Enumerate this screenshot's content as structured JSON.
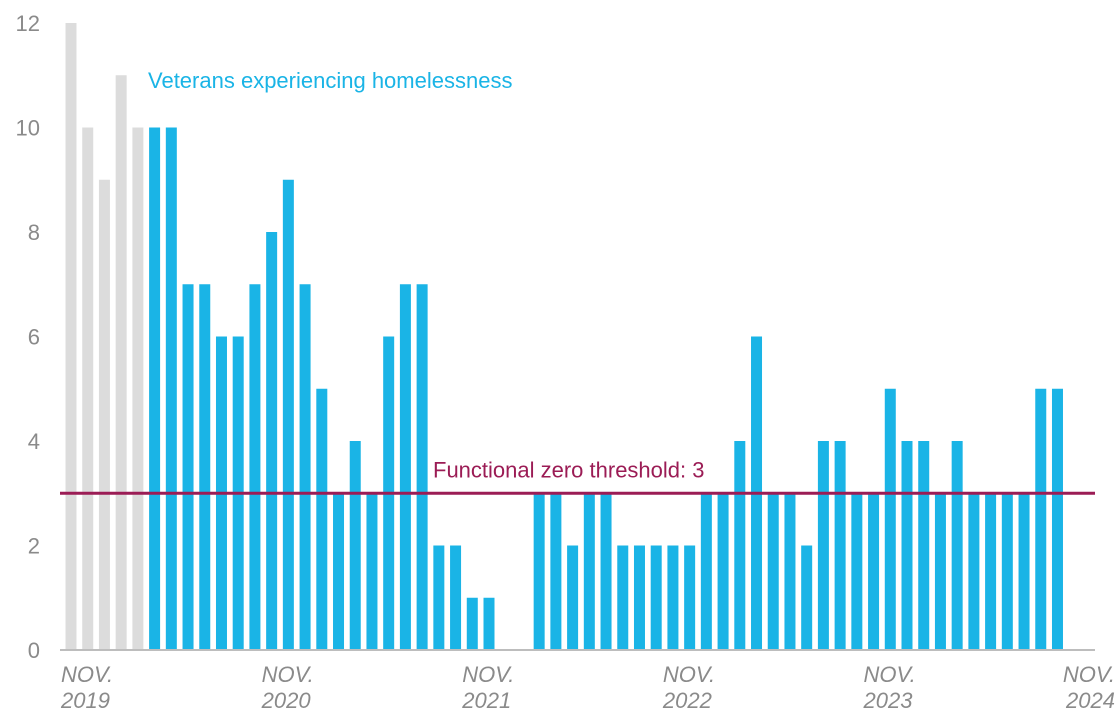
{
  "chart_data": {
    "type": "bar",
    "series_label": "Veterans experiencing homelessness",
    "label_color": "#1ab4e6",
    "categories": [
      "NOV. 2019",
      null,
      null,
      null,
      null,
      null,
      null,
      null,
      null,
      null,
      null,
      null,
      "NOV. 2020",
      null,
      null,
      null,
      null,
      null,
      null,
      null,
      null,
      null,
      null,
      null,
      "NOV. 2021",
      null,
      null,
      null,
      null,
      null,
      null,
      null,
      null,
      null,
      null,
      null,
      "NOV. 2022",
      null,
      null,
      null,
      null,
      null,
      null,
      null,
      null,
      null,
      null,
      null,
      "NOV. 2023",
      null,
      null,
      null,
      null,
      null,
      null,
      null,
      null,
      null,
      null,
      null,
      "NOV. 2024"
    ],
    "values": [
      12,
      10,
      9,
      11,
      10,
      10,
      10,
      7,
      7,
      6,
      6,
      7,
      8,
      9,
      7,
      5,
      3,
      4,
      3,
      6,
      7,
      7,
      2,
      2,
      1,
      1,
      0,
      0,
      3,
      3,
      2,
      3,
      3,
      2,
      2,
      2,
      2,
      2,
      3,
      3,
      4,
      6,
      3,
      3,
      2,
      4,
      4,
      3,
      3,
      5,
      4,
      4,
      3,
      4,
      3,
      3,
      3,
      3,
      5,
      5,
      null
    ],
    "colors": [
      "#dcdcdc",
      "#dcdcdc",
      "#dcdcdc",
      "#dcdcdc",
      "#dcdcdc",
      "#1ab4e6",
      "#1ab4e6",
      "#1ab4e6",
      "#1ab4e6",
      "#1ab4e6",
      "#1ab4e6",
      "#1ab4e6",
      "#1ab4e6",
      "#1ab4e6",
      "#1ab4e6",
      "#1ab4e6",
      "#1ab4e6",
      "#1ab4e6",
      "#1ab4e6",
      "#1ab4e6",
      "#1ab4e6",
      "#1ab4e6",
      "#1ab4e6",
      "#1ab4e6",
      "#1ab4e6",
      "#1ab4e6",
      "#1ab4e6",
      "#1ab4e6",
      "#1ab4e6",
      "#1ab4e6",
      "#1ab4e6",
      "#1ab4e6",
      "#1ab4e6",
      "#1ab4e6",
      "#1ab4e6",
      "#1ab4e6",
      "#1ab4e6",
      "#1ab4e6",
      "#1ab4e6",
      "#1ab4e6",
      "#1ab4e6",
      "#1ab4e6",
      "#1ab4e6",
      "#1ab4e6",
      "#1ab4e6",
      "#1ab4e6",
      "#1ab4e6",
      "#1ab4e6",
      "#1ab4e6",
      "#1ab4e6",
      "#1ab4e6",
      "#1ab4e6",
      "#1ab4e6",
      "#1ab4e6",
      "#1ab4e6",
      "#1ab4e6",
      "#1ab4e6",
      "#1ab4e6",
      "#1ab4e6",
      "#1ab4e6",
      "#1ab4e6"
    ],
    "threshold": {
      "value": 3,
      "label": "Functional zero threshold: 3",
      "color": "#9b1c55"
    },
    "ylim": [
      0,
      12
    ],
    "yticks": [
      0,
      2,
      4,
      6,
      8,
      10,
      12
    ]
  }
}
